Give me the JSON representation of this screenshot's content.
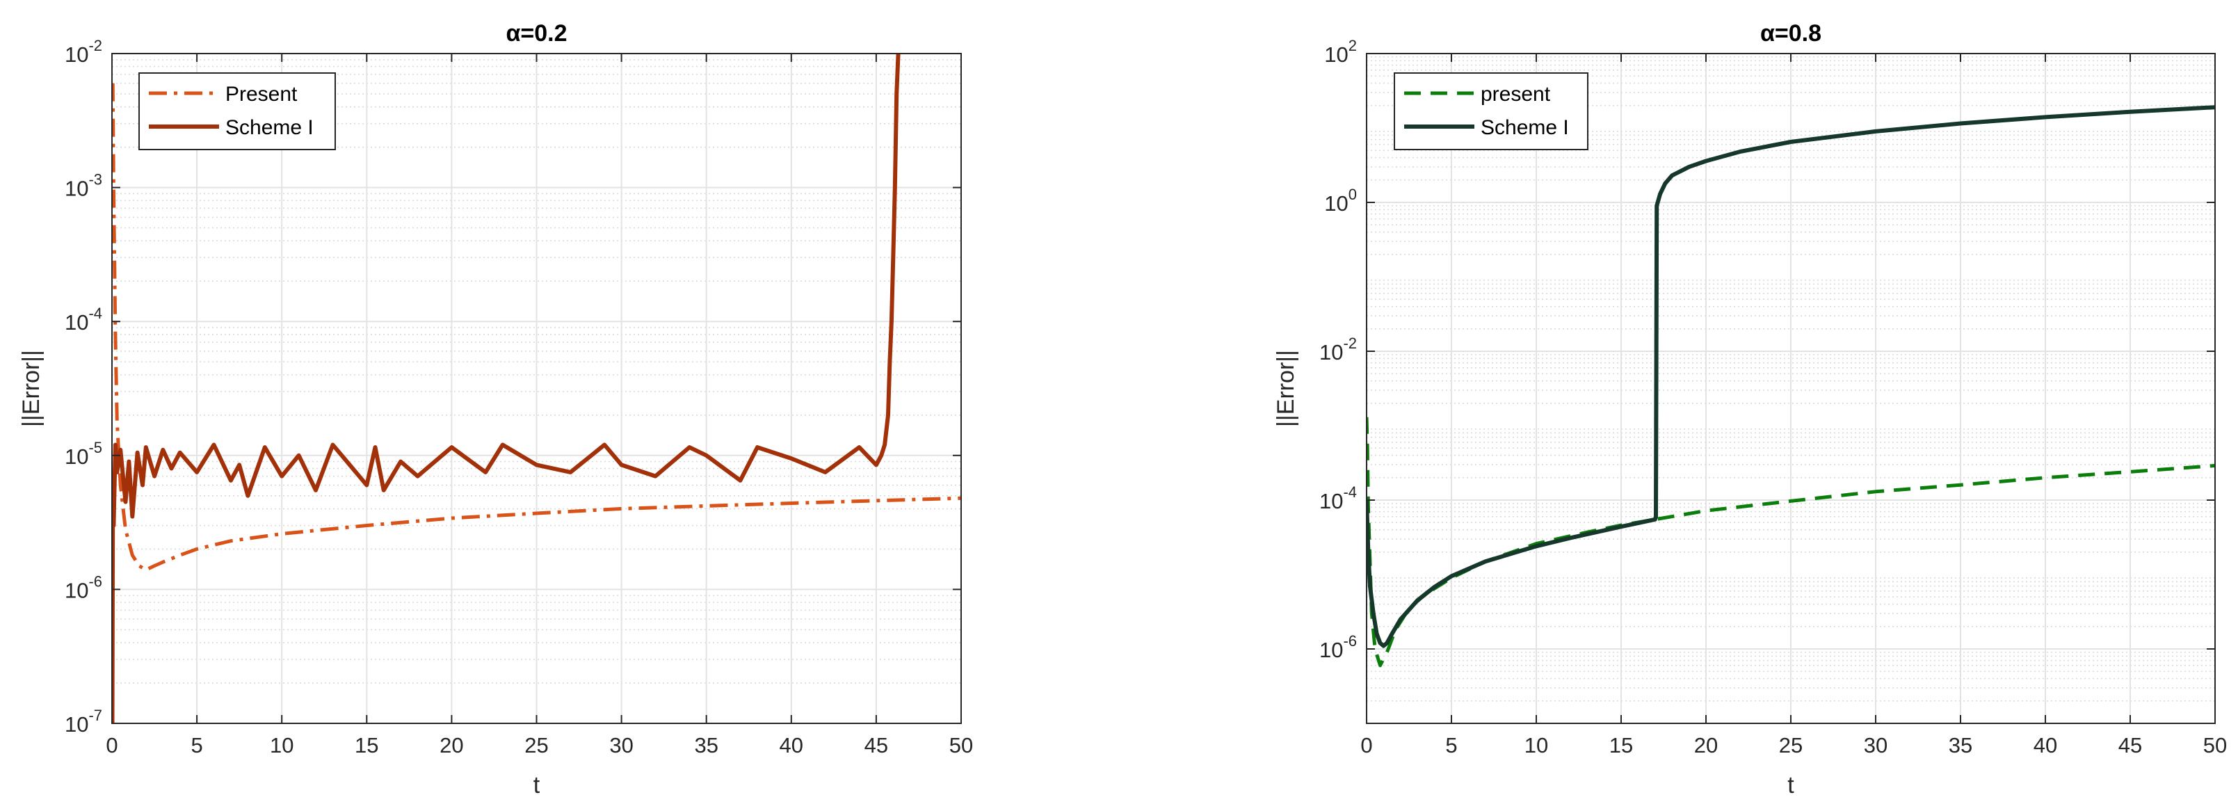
{
  "chart_data": [
    {
      "type": "line",
      "title": "α=0.2",
      "xlabel": "t",
      "ylabel": "||Error||",
      "x_scale": "linear",
      "y_scale": "log",
      "xlim": [
        0,
        50
      ],
      "ylim": [
        1e-07,
        0.01
      ],
      "xticks": [
        0,
        5,
        10,
        15,
        20,
        25,
        30,
        35,
        40,
        45,
        50
      ],
      "xtick_labels": [
        "0",
        "5",
        "10",
        "15",
        "20",
        "25",
        "30",
        "35",
        "40",
        "45",
        "50"
      ],
      "yticks": [
        1e-07,
        1e-06,
        1e-05,
        0.0001,
        0.001,
        0.01
      ],
      "ytick_labels": [
        {
          "base": "10",
          "exp": "-7"
        },
        {
          "base": "10",
          "exp": "-6"
        },
        {
          "base": "10",
          "exp": "-5"
        },
        {
          "base": "10",
          "exp": "-4"
        },
        {
          "base": "10",
          "exp": "-3"
        },
        {
          "base": "10",
          "exp": "-2"
        }
      ],
      "grid": true,
      "minor_grid": true,
      "legend_position": "top-left",
      "series": [
        {
          "name": "Present",
          "color": "#D95319",
          "style": "dash-dot",
          "x": [
            0.05,
            0.1,
            0.2,
            0.3,
            0.5,
            0.8,
            1.2,
            1.6,
            2.0,
            2.5,
            3,
            4,
            5,
            7,
            10,
            15,
            20,
            25,
            30,
            35,
            40,
            45,
            50
          ],
          "y": [
            0.006,
            0.001,
            8e-05,
            1.8e-05,
            6e-06,
            2.8e-06,
            1.8e-06,
            1.5e-06,
            1.4e-06,
            1.5e-06,
            1.6e-06,
            1.8e-06,
            2e-06,
            2.3e-06,
            2.6e-06,
            3e-06,
            3.4e-06,
            3.7e-06,
            4e-06,
            4.2e-06,
            4.4e-06,
            4.6e-06,
            4.8e-06
          ]
        },
        {
          "name": "Scheme I",
          "color": "#A2310A",
          "style": "solid",
          "x": [
            0.02,
            0.05,
            0.1,
            0.2,
            0.3,
            0.5,
            0.8,
            1.0,
            1.2,
            1.5,
            1.8,
            2.0,
            2.5,
            3.0,
            3.5,
            4.0,
            5.0,
            6.0,
            7.0,
            7.5,
            8.0,
            9.0,
            10.0,
            11.0,
            12.0,
            13.0,
            14.0,
            15.0,
            15.5,
            16.0,
            17.0,
            18.0,
            20.0,
            22.0,
            23.0,
            25.0,
            27.0,
            29.0,
            30.0,
            32.0,
            34.0,
            35.0,
            37.0,
            38.0,
            40.0,
            42.0,
            44.0,
            45.0,
            45.3,
            45.5,
            45.7,
            45.8,
            45.9,
            46.0,
            46.1,
            46.2,
            46.3
          ],
          "y": [
            1e-07,
            4e-06,
            3e-06,
            1.2e-05,
            7.5e-06,
            1.1e-05,
            4.5e-06,
            9e-06,
            3.5e-06,
            1.05e-05,
            6e-06,
            1.15e-05,
            7e-06,
            1.1e-05,
            8e-06,
            1.05e-05,
            7.5e-06,
            1.2e-05,
            6.5e-06,
            8.5e-06,
            5e-06,
            1.15e-05,
            7e-06,
            1e-05,
            5.5e-06,
            1.2e-05,
            8.5e-06,
            6e-06,
            1.15e-05,
            5.5e-06,
            9e-06,
            7e-06,
            1.15e-05,
            7.5e-06,
            1.2e-05,
            8.5e-06,
            7.5e-06,
            1.2e-05,
            8.5e-06,
            7e-06,
            1.15e-05,
            1e-05,
            6.5e-06,
            1.15e-05,
            9.5e-06,
            7.5e-06,
            1.15e-05,
            8.5e-06,
            1e-05,
            1.2e-05,
            2e-05,
            5e-05,
            0.0001,
            0.0003,
            0.001,
            0.005,
            0.01
          ]
        }
      ]
    },
    {
      "type": "line",
      "title": "α=0.8",
      "xlabel": "t",
      "ylabel": "||Error||",
      "x_scale": "linear",
      "y_scale": "log",
      "xlim": [
        0,
        50
      ],
      "ylim": [
        1e-07,
        100
      ],
      "xticks": [
        0,
        5,
        10,
        15,
        20,
        25,
        30,
        35,
        40,
        45,
        50
      ],
      "xtick_labels": [
        "0",
        "5",
        "10",
        "15",
        "20",
        "25",
        "30",
        "35",
        "40",
        "45",
        "50"
      ],
      "yticks": [
        1e-06,
        0.0001,
        0.01,
        1,
        100
      ],
      "ytick_labels": [
        {
          "base": "10",
          "exp": "-6"
        },
        {
          "base": "10",
          "exp": "-4"
        },
        {
          "base": "10",
          "exp": "-2"
        },
        {
          "base": "10",
          "exp": "0"
        },
        {
          "base": "10",
          "exp": "2"
        }
      ],
      "grid": true,
      "minor_grid": true,
      "legend_position": "top-left",
      "series": [
        {
          "name": "present",
          "color": "#0B7D0B",
          "style": "dashed",
          "x": [
            0,
            0.05,
            0.1,
            0.2,
            0.3,
            0.5,
            0.8,
            1.2,
            1.7,
            2.5,
            3.5,
            5,
            7,
            10,
            13,
            15,
            17,
            20,
            25,
            30,
            35,
            40,
            45,
            50
          ],
          "y": [
            0.0013,
            0.0005,
            8e-05,
            1.5e-05,
            3e-06,
            1e-06,
            6e-07,
            9e-07,
            1.8e-06,
            3.5e-06,
            5.5e-06,
            9e-06,
            1.5e-05,
            2.6e-05,
            3.7e-05,
            4.6e-05,
            5.5e-05,
            7.2e-05,
            9.7e-05,
            0.00013,
            0.00016,
            0.0002,
            0.00024,
            0.00029
          ]
        },
        {
          "name": "Scheme I",
          "color": "#15382A",
          "style": "solid",
          "x": [
            0,
            0.1,
            0.2,
            0.4,
            0.6,
            0.8,
            1.0,
            1.2,
            1.5,
            2,
            3,
            4,
            5,
            7,
            10,
            12,
            15,
            17.0,
            17.05,
            17.1,
            17.3,
            17.6,
            18,
            19,
            20,
            22,
            25,
            30,
            35,
            40,
            45,
            50
          ],
          "y": [
            0.0001,
            2e-05,
            7e-06,
            3e-06,
            1.6e-06,
            1.2e-06,
            1.1e-06,
            1.2e-06,
            1.6e-06,
            2.5e-06,
            4.5e-06,
            6.8e-06,
            9.5e-06,
            1.5e-05,
            2.4e-05,
            3.1e-05,
            4.4e-05,
            5.5e-05,
            6e-05,
            0.9,
            1.3,
            1.8,
            2.3,
            3.0,
            3.6,
            4.8,
            6.5,
            9.0,
            11.5,
            14.0,
            16.5,
            19
          ]
        }
      ]
    }
  ]
}
